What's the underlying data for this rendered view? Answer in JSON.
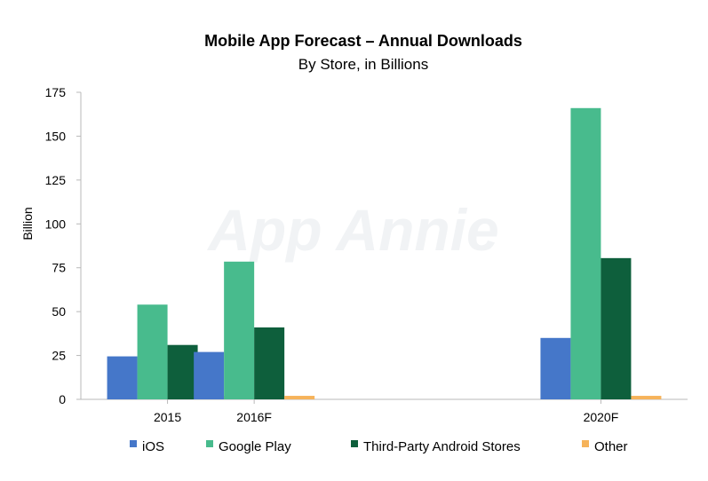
{
  "chart_data": {
    "type": "bar",
    "title": "Mobile App Forecast – Annual Downloads",
    "subtitle": "By Store, in Billions",
    "xlabel": "",
    "ylabel": "Billion",
    "ylim": [
      0,
      175
    ],
    "yticks": [
      0,
      25,
      50,
      75,
      100,
      125,
      150,
      175
    ],
    "categories": [
      "2015",
      "2016F",
      "2020F"
    ],
    "x_positions": [
      2015,
      2016,
      2020
    ],
    "xlim": [
      2014,
      2021
    ],
    "grid": false,
    "legend_position": "bottom",
    "series": [
      {
        "name": "iOS",
        "color": "#4577c9",
        "values": [
          24.5,
          27,
          35
        ]
      },
      {
        "name": "Google Play",
        "color": "#48bb8d",
        "values": [
          54,
          78.5,
          166
        ]
      },
      {
        "name": "Third-Party Android Stores",
        "color": "#0e5f3c",
        "values": [
          31,
          41,
          80.5
        ]
      },
      {
        "name": "Other",
        "color": "#f6b35a",
        "values": [
          2,
          2,
          2
        ]
      }
    ],
    "watermark": "App Annie"
  }
}
